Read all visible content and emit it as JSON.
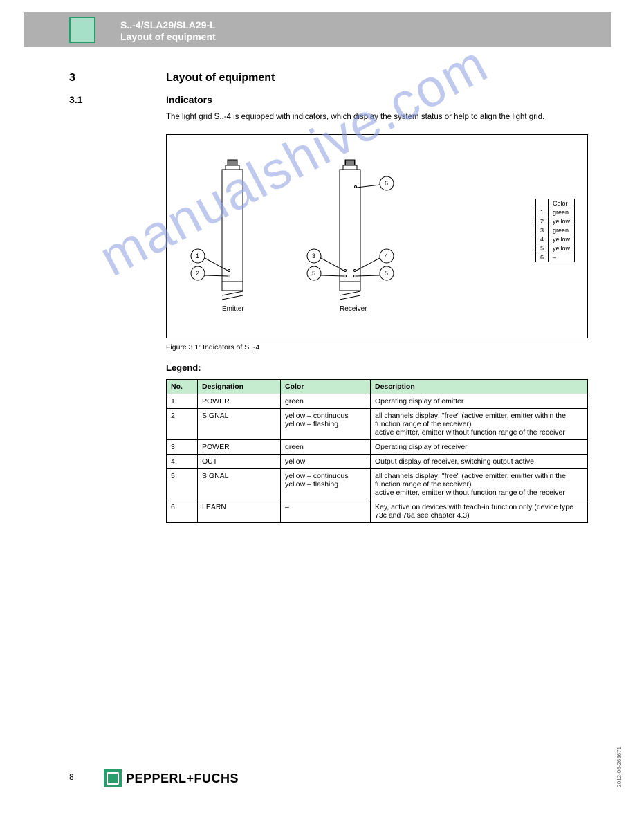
{
  "header": {
    "title_line1": "S..-4/SLA29/SLA29-L",
    "title_line2": "Layout of equipment"
  },
  "section": {
    "number": "3",
    "title": "Layout of equipment",
    "sub_number": "3.1",
    "sub_title": "Indicators",
    "intro": "The light grid S..-4 is equipped with indicators, which display the system status or help to align the light grid."
  },
  "diagram": {
    "emitter_label": "Emitter",
    "receiver_label": "Receiver",
    "labels": {
      "1": "1",
      "2": "2",
      "3": "3",
      "4": "4",
      "5": "5",
      "6": "6"
    },
    "legend_header": [
      "",
      "Color"
    ],
    "legend_rows": [
      [
        "1",
        "green"
      ],
      [
        "2",
        "yellow"
      ],
      [
        "3",
        "green"
      ],
      [
        "4",
        "yellow"
      ],
      [
        "5",
        "yellow"
      ],
      [
        "6",
        "–"
      ]
    ],
    "line_color": "#000000",
    "fill": "#ffffff"
  },
  "figure_caption": "Figure 3.1:  Indicators of S..-4",
  "table": {
    "headers": [
      "No.",
      "Designation",
      "Color",
      "Description"
    ],
    "col_widths": [
      "45px",
      "120px",
      "100px",
      "auto"
    ],
    "header_bg": "#c5eccf",
    "rows": [
      {
        "no": "1",
        "desig": "POWER",
        "color": "green",
        "desc": "Operating display of emitter"
      },
      {
        "no": "2",
        "desig": "SIGNAL",
        "color": "yellow – continuous\nyellow – flashing",
        "desc": "all channels display: \"free\" (active emitter, emitter within the function range of the receiver)\nactive emitter, emitter without function range of the receiver"
      },
      {
        "no": "3",
        "desig": "POWER",
        "color": "green",
        "desc": "Operating display of receiver"
      },
      {
        "no": "4",
        "desig": "OUT",
        "color": "yellow",
        "desc": "Output display of receiver, switching output active"
      },
      {
        "no": "5",
        "desig": "SIGNAL",
        "color": "yellow – continuous\nyellow – flashing",
        "desc": "all channels display: \"free\" (active emitter, emitter within the function range of the receiver)\nactive emitter, emitter without function range of the receiver"
      },
      {
        "no": "6",
        "desig": "LEARN",
        "color": "–",
        "desc": "Key, active on devices with teach-in function only (device type 73c and 76a see chapter 4.3)"
      }
    ]
  },
  "watermark": "manualshive.com",
  "footer": {
    "brand": "PEPPERL+FUCHS",
    "page": "8"
  },
  "side_code": "2012-06-263671"
}
